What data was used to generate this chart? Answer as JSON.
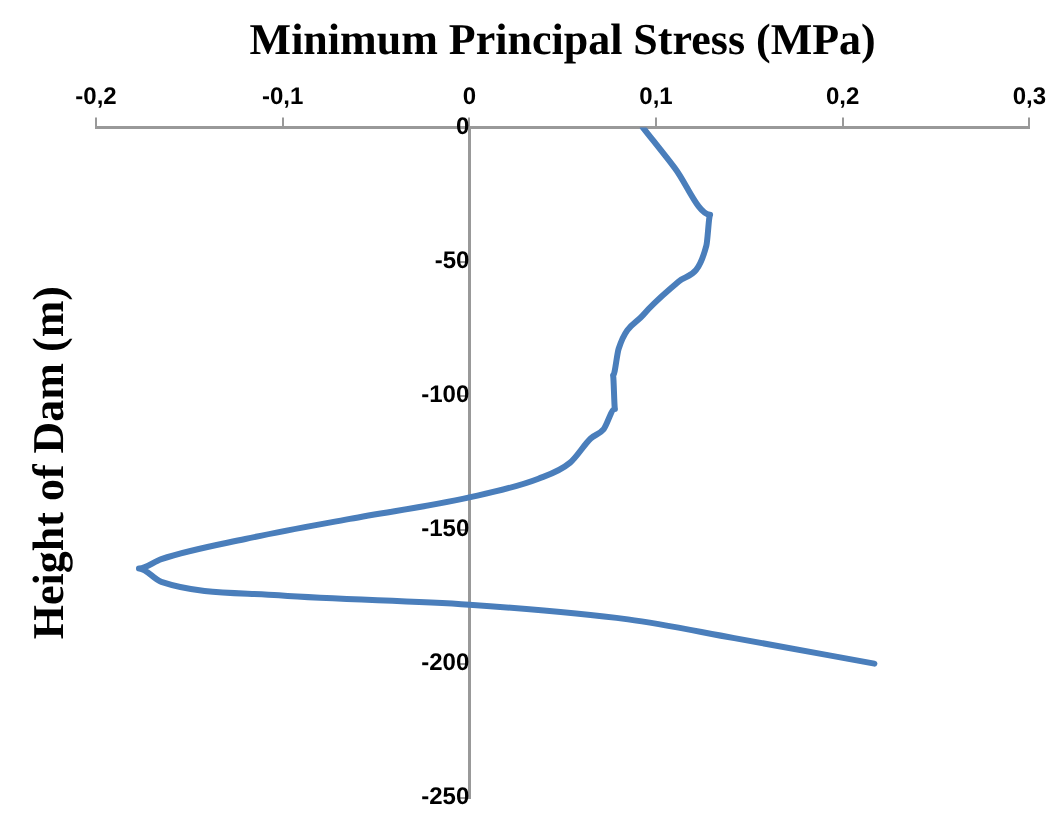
{
  "chart_data": {
    "type": "line",
    "xlabel": "Minimum Principal Stress (MPa)",
    "ylabel": "Height of Dam (m)",
    "xlim": [
      -0.2,
      0.3
    ],
    "xticks": [
      {
        "value": -0.2,
        "label": "-0,2"
      },
      {
        "value": -0.1,
        "label": "-0,1"
      },
      {
        "value": 0,
        "label": "0"
      },
      {
        "value": 0.1,
        "label": "0,1"
      },
      {
        "value": 0.2,
        "label": "0,2"
      },
      {
        "value": 0.3,
        "label": "0,3"
      }
    ],
    "ylim": [
      -250,
      0
    ],
    "yticks": [
      -250,
      -200,
      -150,
      -100,
      -50,
      0
    ],
    "grid": false,
    "legend": false,
    "marker": "none",
    "line_style": "solid",
    "series": [
      {
        "color": "#4a7ebb",
        "x": [
          0.093,
          0.11,
          0.129,
          0.127,
          0.112,
          0.093,
          0.08,
          0.077,
          0.078,
          0.072,
          0.065,
          0.054,
          0.037,
          0,
          -0.064,
          -0.12,
          -0.165,
          -0.177,
          -0.165,
          -0.102,
          0,
          0.085,
          0.142,
          0.217
        ],
        "values": [
          0,
          -15,
          -32.5,
          -44,
          -57.5,
          -70,
          -82.5,
          -92.5,
          -105,
          -112.5,
          -116,
          -125,
          -131,
          -138,
          -146,
          -153.5,
          -161,
          -164.5,
          -169.5,
          -174.5,
          -178,
          -183.5,
          -190.5,
          -200
        ]
      }
    ]
  }
}
